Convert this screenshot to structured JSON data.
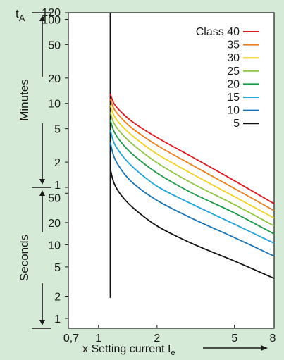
{
  "chart_data": {
    "type": "line",
    "title": "",
    "y_axis": {
      "label": "t",
      "label_subscript": "A",
      "scale": "log",
      "minutes_ticks": [
        {
          "label": "120",
          "minutes": 120
        },
        {
          "label": "100",
          "minutes": 100
        },
        {
          "label": "50",
          "minutes": 50
        },
        {
          "label": "20",
          "minutes": 20
        },
        {
          "label": "10",
          "minutes": 10
        },
        {
          "label": "5",
          "minutes": 5
        },
        {
          "label": "2",
          "minutes": 2
        },
        {
          "label": "1",
          "minutes": 1
        }
      ],
      "seconds_ticks": [
        {
          "label": "50",
          "seconds": 50
        },
        {
          "label": "20",
          "seconds": 20
        },
        {
          "label": "10",
          "seconds": 10
        },
        {
          "label": "5",
          "seconds": 5
        },
        {
          "label": "2",
          "seconds": 2
        },
        {
          "label": "1",
          "seconds": 1
        }
      ],
      "section_labels": {
        "minutes": "Minutes",
        "seconds": "Seconds"
      }
    },
    "x_axis": {
      "label": "x Setting current I",
      "label_subscript": "e",
      "scale": "log",
      "range": [
        0.7,
        8
      ],
      "ticks": [
        {
          "label": "0,7",
          "value": 0.7
        },
        {
          "label": "1",
          "value": 1
        },
        {
          "label": "2",
          "value": 2
        },
        {
          "label": "5",
          "value": 5
        },
        {
          "label": "8",
          "value": 8
        }
      ]
    },
    "vertical_line": {
      "x": 1.15,
      "y_seconds_from": 1.9,
      "y_seconds_to": 7200
    },
    "legend": {
      "title": "Class",
      "placement": "top-right"
    },
    "series": [
      {
        "name": "40",
        "color": "#e3151b",
        "points": [
          [
            1.15,
            780
          ],
          [
            1.2,
            600
          ],
          [
            1.3,
            480
          ],
          [
            1.5,
            360
          ],
          [
            2.0,
            235
          ],
          [
            3.0,
            140
          ],
          [
            5.0,
            72
          ],
          [
            8.0,
            36
          ]
        ]
      },
      {
        "name": "35",
        "color": "#f07d1b",
        "points": [
          [
            1.15,
            680
          ],
          [
            1.2,
            520
          ],
          [
            1.3,
            410
          ],
          [
            1.5,
            300
          ],
          [
            2.0,
            190
          ],
          [
            3.0,
            112
          ],
          [
            5.0,
            58
          ],
          [
            8.0,
            29
          ]
        ]
      },
      {
        "name": "30",
        "color": "#f4d21c",
        "points": [
          [
            1.15,
            570
          ],
          [
            1.2,
            430
          ],
          [
            1.3,
            335
          ],
          [
            1.5,
            245
          ],
          [
            2.0,
            150
          ],
          [
            3.0,
            88
          ],
          [
            5.0,
            45
          ],
          [
            8.0,
            23
          ]
        ]
      },
      {
        "name": "25",
        "color": "#8cc63e",
        "points": [
          [
            1.15,
            470
          ],
          [
            1.2,
            350
          ],
          [
            1.3,
            270
          ],
          [
            1.5,
            195
          ],
          [
            2.0,
            118
          ],
          [
            3.0,
            68
          ],
          [
            5.0,
            35
          ],
          [
            8.0,
            18
          ]
        ]
      },
      {
        "name": "20",
        "color": "#179a46",
        "points": [
          [
            1.15,
            380
          ],
          [
            1.2,
            280
          ],
          [
            1.3,
            210
          ],
          [
            1.5,
            148
          ],
          [
            2.0,
            89
          ],
          [
            3.0,
            51
          ],
          [
            5.0,
            27
          ],
          [
            8.0,
            14
          ]
        ]
      },
      {
        "name": "15",
        "color": "#1ba6dc",
        "points": [
          [
            1.15,
            290
          ],
          [
            1.2,
            205
          ],
          [
            1.3,
            152
          ],
          [
            1.5,
            105
          ],
          [
            2.0,
            62
          ],
          [
            3.0,
            36
          ],
          [
            5.0,
            19
          ],
          [
            8.0,
            10.5
          ]
        ]
      },
      {
        "name": "10",
        "color": "#1673b8",
        "points": [
          [
            1.15,
            205
          ],
          [
            1.2,
            140
          ],
          [
            1.3,
            100
          ],
          [
            1.5,
            68
          ],
          [
            2.0,
            40
          ],
          [
            3.0,
            23
          ],
          [
            5.0,
            12.5
          ],
          [
            8.0,
            7
          ]
        ]
      },
      {
        "name": "5",
        "color": "#111111",
        "points": [
          [
            1.15,
            100
          ],
          [
            1.2,
            68
          ],
          [
            1.3,
            48
          ],
          [
            1.5,
            32
          ],
          [
            2.0,
            18
          ],
          [
            3.0,
            10.5
          ],
          [
            5.0,
            6
          ],
          [
            8.0,
            3.5
          ]
        ]
      }
    ]
  }
}
